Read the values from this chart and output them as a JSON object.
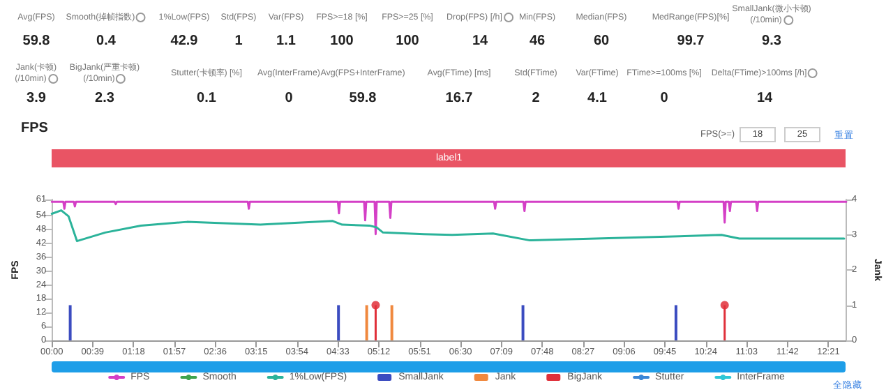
{
  "chart_data": {
    "type": "line",
    "title": "FPS",
    "ylabel": "FPS",
    "y2label": "Jank",
    "annotations": [
      "Avg(FPS)",
      "59.8",
      "Smooth(掉帧指数)",
      "0.4",
      "1%Low(FPS)",
      "42.9",
      "Std(FPS)",
      "1",
      "Var(FPS)",
      "1.1",
      "FPS>=18 [%]",
      "100",
      "FPS>=25 [%]",
      "100",
      "Drop(FPS) [/h]",
      "14",
      "Min(FPS)",
      "46",
      "Median(FPS)",
      "60",
      "MedRange(FPS)[%]",
      "99.7",
      "SmallJank(微小卡顿)(/10min)",
      "9.3",
      "Jank(卡顿)(/10min)",
      "3.9",
      "BigJank(严重卡顿)(/10min)",
      "2.3",
      "Stutter(卡顿率) [%]",
      "0.1",
      "Avg(InterFrame)",
      "0",
      "Avg(FPS+InterFrame)",
      "59.8",
      "Avg(FTime) [ms]",
      "16.7",
      "Std(FTime)",
      "2",
      "Var(FTime)",
      "4.1",
      "FTime>=100ms [%]",
      "0",
      "Delta(FTime)>100ms [/h]",
      "14",
      "FPS(>=)",
      "18",
      "25",
      "重置",
      "全隐藏",
      "label1"
    ],
    "xlim": [
      0,
      758
    ],
    "xticks": [
      {
        "value": 0,
        "label": "00:00"
      },
      {
        "value": 39,
        "label": "00:39"
      },
      {
        "value": 78,
        "label": "01:18"
      },
      {
        "value": 117,
        "label": "01:57"
      },
      {
        "value": 156,
        "label": "02:36"
      },
      {
        "value": 195,
        "label": "03:15"
      },
      {
        "value": 234,
        "label": "03:54"
      },
      {
        "value": 273,
        "label": "04:33"
      },
      {
        "value": 312,
        "label": "05:12"
      },
      {
        "value": 351,
        "label": "05:51"
      },
      {
        "value": 390,
        "label": "06:30"
      },
      {
        "value": 429,
        "label": "07:09"
      },
      {
        "value": 468,
        "label": "07:48"
      },
      {
        "value": 507,
        "label": "08:27"
      },
      {
        "value": 546,
        "label": "09:06"
      },
      {
        "value": 585,
        "label": "09:45"
      },
      {
        "value": 624,
        "label": "10:24"
      },
      {
        "value": 663,
        "label": "11:03"
      },
      {
        "value": 702,
        "label": "11:42"
      },
      {
        "value": 741,
        "label": "12:21"
      }
    ],
    "ylim": [
      0,
      61
    ],
    "yticks": [
      0,
      6,
      12,
      18,
      24,
      30,
      36,
      42,
      48,
      54,
      61
    ],
    "y2lim": [
      0,
      4
    ],
    "y2ticks": [
      0,
      1,
      2,
      3,
      4
    ],
    "grid": false,
    "legend": "bottom",
    "marker": "none",
    "line_style": "solid",
    "series": [
      {
        "name": "FPS",
        "color": "#d43fc6",
        "x": [
          0,
          11,
          12,
          13,
          21,
          22,
          23,
          60,
          61,
          62,
          187,
          188,
          189,
          273,
          274,
          275,
          298,
          299,
          300,
          308,
          309,
          310,
          322,
          323,
          324,
          422,
          423,
          424,
          450,
          451,
          452,
          597,
          598,
          599,
          641,
          642,
          643,
          646,
          647,
          648,
          672,
          673,
          674,
          758
        ],
        "values": [
          60,
          60,
          57,
          60,
          60,
          58,
          60,
          60,
          59,
          60,
          60,
          57,
          60,
          60,
          55,
          60,
          60,
          52,
          60,
          60,
          46,
          60,
          60,
          53,
          60,
          60,
          57,
          60,
          60,
          56,
          60,
          60,
          57,
          60,
          60,
          51,
          60,
          60,
          56,
          60,
          60,
          56,
          60,
          60
        ]
      },
      {
        "name": "Smooth",
        "color": "#3fa34d"
      },
      {
        "name": "1%Low(FPS)",
        "color": "#2bb39a",
        "x": [
          0,
          9,
          16,
          24,
          51,
          85,
          129,
          199,
          268,
          277,
          303,
          310,
          316,
          355,
          382,
          421,
          456,
          599,
          639,
          656,
          756
        ],
        "values": [
          54.8,
          56.3,
          53.7,
          43,
          46.7,
          49.7,
          51.3,
          50.1,
          51.7,
          50.1,
          49.7,
          48.9,
          46.7,
          46,
          45.7,
          46.3,
          43.3,
          45.1,
          45.7,
          44.1,
          44.1
        ]
      },
      {
        "name": "SmallJank",
        "type": "bar",
        "axis": "y2",
        "color": "#3b4cc0",
        "x": [
          19,
          275,
          451,
          597
        ],
        "values": [
          1,
          1,
          1,
          1
        ]
      },
      {
        "name": "Jank",
        "type": "bar",
        "axis": "y2",
        "color": "#f0883e",
        "x": [
          299,
          323
        ],
        "values": [
          1,
          1
        ]
      },
      {
        "name": "BigJank",
        "type": "lollipop",
        "axis": "y2",
        "marker": "circle",
        "color": "#e0303a",
        "x": [
          309,
          642
        ],
        "values": [
          1,
          1
        ]
      },
      {
        "name": "Stutter",
        "color": "#3a86d6"
      },
      {
        "name": "InterFrame",
        "color": "#2ec7d6"
      }
    ]
  }
}
